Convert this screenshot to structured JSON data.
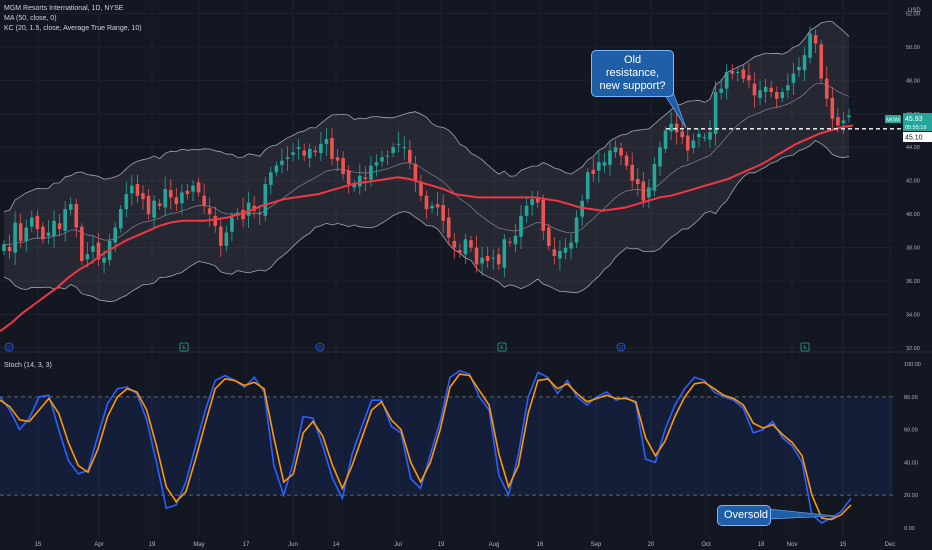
{
  "header": {
    "title": "MGM Resorts International, 1D, NYSE",
    "ma_label": "MA (50, close, 0)",
    "kc_label": "KC (20, 1.5, close, Average True Range, 10)",
    "currency": "USD"
  },
  "price_badge": {
    "symbol": "MGM",
    "price": "45.93",
    "countdown": "05:55:19",
    "level_label": "45.10"
  },
  "annotations": {
    "resistance": "Old resistance,\nnew support?",
    "oversold": "Oversold"
  },
  "stoch_label": "Stoch (14, 3, 3)",
  "x_labels": [
    "15",
    "Apr",
    "19",
    "May",
    "17",
    "Jun",
    "14",
    "Jul",
    "19",
    "Aug",
    "16",
    "Sep",
    "20",
    "Oct",
    "18",
    "Nov",
    "15",
    "Dec"
  ],
  "event_markers": [
    "D",
    "E",
    "D",
    "E",
    "D",
    "E"
  ],
  "colors": {
    "up": "#26a69a",
    "down": "#ef5350",
    "ma": "#f23645",
    "k": "#2962ff",
    "d": "#ff9800",
    "band": "#d1d4dc",
    "callout": "#1e5fa8"
  },
  "chart_data": [
    {
      "type": "candlestick",
      "title": "MGM Resorts International, 1D, NYSE",
      "ylim": [
        32,
        52.8
      ],
      "y_ticks": [
        32,
        34,
        36,
        38,
        40,
        42,
        44,
        46,
        48,
        50,
        52
      ],
      "y_tick_labels": [
        "32.00",
        "34.00",
        "36.00",
        "38.00",
        "40.00",
        "42.00",
        "44.00",
        "46.00",
        "48.00",
        "50.00",
        "52.00"
      ],
      "grid": true,
      "series": [
        {
          "name": "Close",
          "values": [
            38.2,
            37.8,
            39.5,
            38.4,
            39.2,
            39.8,
            39.1,
            38.5,
            38.9,
            39.6,
            39.1,
            40.3,
            40.6,
            39.2,
            37.2,
            37.6,
            38.1,
            37.3,
            37.4,
            38.4,
            39.2,
            40.3,
            41.2,
            41.7,
            41.1,
            40.9,
            40.0,
            40.8,
            40.5,
            41.5,
            41.0,
            40.6,
            41.3,
            41.2,
            41.7,
            41.3,
            40.5,
            40.0,
            39.3,
            38.1,
            38.9,
            39.8,
            40.1,
            39.7,
            40.7,
            40.2,
            40.0,
            41.8,
            42.5,
            42.9,
            43.2,
            43.4,
            43.7,
            44.0,
            43.5,
            43.9,
            43.7,
            44.2,
            44.5,
            43.3,
            43.2,
            42.4,
            41.8,
            41.8,
            42.3,
            42.1,
            42.9,
            43.1,
            43.4,
            43.5,
            44.0,
            44.2,
            44.0,
            43.1,
            42.0,
            41.1,
            40.3,
            40.5,
            40.4,
            39.6,
            38.6,
            38.0,
            37.7,
            38.5,
            38.0,
            37.0,
            37.4,
            37.2,
            37.4,
            37.0,
            38.5,
            38.3,
            38.7,
            39.9,
            40.5,
            40.9,
            40.7,
            39.0,
            38.1,
            37.5,
            37.8,
            38.0,
            38.3,
            39.8,
            40.8,
            42.5,
            42.4,
            43.1,
            43.1,
            43.8,
            44.0,
            43.5,
            42.9,
            42.0,
            41.8,
            40.8,
            41.6,
            43.0,
            44.0,
            45.0,
            45.4,
            44.9,
            44.6,
            43.8,
            44.4,
            44.8,
            44.6,
            44.9,
            47.3,
            47.5,
            48.5,
            48.4,
            48.5,
            48.1,
            48.0,
            47.1,
            47.4,
            47.6,
            47.3,
            46.9,
            47.3,
            47.7,
            48.4,
            48.8,
            49.5,
            50.8,
            50.2,
            48.1,
            46.9,
            45.7,
            45.3,
            45.6,
            45.9
          ]
        },
        {
          "name": "MA (50, close, 0)",
          "values": [
            33.0,
            33.5,
            34.1,
            34.6,
            35.1,
            35.6,
            36.2,
            36.7,
            37.1,
            37.6,
            38.0,
            38.4,
            38.7,
            39.0,
            39.3,
            39.5,
            39.6,
            39.6,
            39.6,
            39.7,
            39.8,
            40.0,
            40.2,
            40.5,
            40.7,
            40.9,
            41.0,
            41.1,
            41.2,
            41.4,
            41.6,
            41.8,
            41.9,
            42.0,
            42.1,
            42.2,
            42.1,
            41.9,
            41.7,
            41.5,
            41.2,
            41.1,
            41.0,
            41.0,
            41.0,
            41.0,
            41.0,
            41.0,
            40.9,
            40.8,
            40.6,
            40.4,
            40.3,
            40.2,
            40.3,
            40.4,
            40.6,
            40.8,
            41.0,
            41.1,
            41.3,
            41.5,
            41.7,
            41.9,
            42.1,
            42.4,
            42.7,
            43.0,
            43.4,
            43.8,
            44.2,
            44.5,
            44.8,
            45.0,
            45.2,
            45.3
          ]
        }
      ],
      "line_level": 45.1
    },
    {
      "type": "line",
      "title": "Stoch (14, 3, 3)",
      "ylim": [
        -5,
        105
      ],
      "y_ticks": [
        0,
        20,
        40,
        60,
        80,
        100
      ],
      "y_tick_labels": [
        "0.00",
        "20.00",
        "40.00",
        "60.00",
        "80.00",
        "100.00"
      ],
      "band": [
        20,
        80
      ],
      "series": [
        {
          "name": "%K",
          "values": [
            80,
            72,
            60,
            67,
            80,
            81,
            60,
            41,
            33,
            35,
            56,
            76,
            85,
            86,
            82,
            66,
            40,
            12,
            14,
            28,
            50,
            72,
            90,
            93,
            90,
            86,
            92,
            83,
            38,
            20,
            40,
            68,
            67,
            50,
            30,
            18,
            45,
            62,
            78,
            78,
            62,
            58,
            30,
            24,
            45,
            65,
            92,
            96,
            94,
            80,
            72,
            32,
            20,
            45,
            80,
            95,
            92,
            82,
            90,
            80,
            75,
            80,
            83,
            78,
            80,
            76,
            42,
            40,
            60,
            75,
            85,
            92,
            90,
            83,
            80,
            78,
            73,
            58,
            60,
            65,
            55,
            50,
            40,
            8,
            3,
            6,
            10,
            18
          ]
        },
        {
          "name": "%D",
          "values": [
            78,
            74,
            66,
            65,
            72,
            79,
            70,
            52,
            38,
            34,
            48,
            68,
            80,
            85,
            83,
            72,
            50,
            25,
            16,
            22,
            42,
            64,
            85,
            91,
            90,
            87,
            89,
            85,
            55,
            28,
            33,
            58,
            65,
            56,
            38,
            24,
            38,
            55,
            72,
            77,
            66,
            60,
            40,
            28,
            40,
            60,
            86,
            94,
            93,
            84,
            75,
            45,
            25,
            38,
            70,
            90,
            91,
            85,
            88,
            82,
            77,
            79,
            81,
            79,
            79,
            77,
            55,
            44,
            53,
            68,
            80,
            88,
            89,
            85,
            81,
            79,
            75,
            64,
            61,
            63,
            57,
            52,
            44,
            20,
            6,
            5,
            8,
            14
          ]
        }
      ]
    }
  ]
}
